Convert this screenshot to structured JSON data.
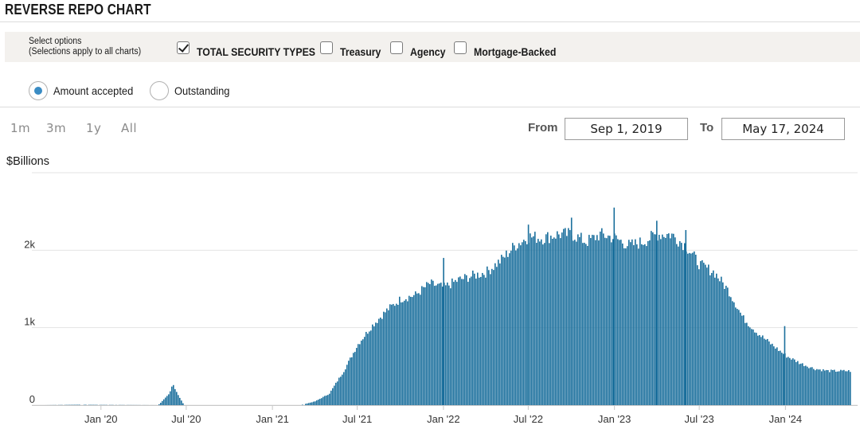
{
  "header": {
    "title": "REVERSE REPO CHART"
  },
  "options": {
    "select_label_line1": "Select options",
    "select_label_line2": "(Selections apply to all charts)",
    "checkboxes": [
      {
        "label": "TOTAL SECURITY TYPES",
        "checked": true
      },
      {
        "label": "Treasury",
        "checked": false
      },
      {
        "label": "Agency",
        "checked": false
      },
      {
        "label": "Mortgage-Backed",
        "checked": false
      }
    ]
  },
  "view": {
    "radios": [
      {
        "label": "Amount accepted",
        "selected": true
      },
      {
        "label": "Outstanding",
        "selected": false
      }
    ]
  },
  "range": {
    "buttons": [
      "1m",
      "3m",
      "1y",
      "All"
    ],
    "from_label": "From",
    "from_value": "Sep 1, 2019",
    "to_label": "To",
    "to_value": "May 17, 2024"
  },
  "chart_data": {
    "type": "bar",
    "ylabel": "$Billions",
    "ylim": [
      0,
      3000
    ],
    "yticks": [
      {
        "value": 0,
        "label": "0"
      },
      {
        "value": 1000,
        "label": "1k"
      },
      {
        "value": 2000,
        "label": "2k"
      }
    ],
    "xlim": [
      "2019-09-01",
      "2024-05-17"
    ],
    "xticks": [
      {
        "date": "2020-01-01",
        "label": "Jan '20"
      },
      {
        "date": "2020-07-01",
        "label": "Jul '20"
      },
      {
        "date": "2021-01-01",
        "label": "Jan '21"
      },
      {
        "date": "2021-07-01",
        "label": "Jul '21"
      },
      {
        "date": "2022-01-01",
        "label": "Jan '22"
      },
      {
        "date": "2022-07-01",
        "label": "Jul '22"
      },
      {
        "date": "2023-01-01",
        "label": "Jan '23"
      },
      {
        "date": "2023-07-01",
        "label": "Jul '23"
      },
      {
        "date": "2024-01-01",
        "label": "Jan '24"
      }
    ],
    "grid": true,
    "color": "#1a6f9c",
    "profile": [
      [
        "2019-09-01",
        0
      ],
      [
        "2019-11-15",
        5
      ],
      [
        "2020-01-01",
        3
      ],
      [
        "2020-05-01",
        0
      ],
      [
        "2020-05-25",
        150
      ],
      [
        "2020-06-01",
        280
      ],
      [
        "2020-06-12",
        140
      ],
      [
        "2020-06-25",
        0
      ],
      [
        "2021-03-01",
        0
      ],
      [
        "2021-04-01",
        50
      ],
      [
        "2021-05-01",
        150
      ],
      [
        "2021-06-01",
        450
      ],
      [
        "2021-07-01",
        800
      ],
      [
        "2021-08-01",
        1050
      ],
      [
        "2021-09-01",
        1250
      ],
      [
        "2021-10-01",
        1400
      ],
      [
        "2021-11-01",
        1450
      ],
      [
        "2021-12-01",
        1600
      ],
      [
        "2022-01-01",
        1550
      ],
      [
        "2022-02-01",
        1650
      ],
      [
        "2022-03-01",
        1700
      ],
      [
        "2022-04-01",
        1750
      ],
      [
        "2022-05-01",
        1900
      ],
      [
        "2022-06-01",
        2100
      ],
      [
        "2022-07-01",
        2220
      ],
      [
        "2022-08-01",
        2200
      ],
      [
        "2022-09-01",
        2250
      ],
      [
        "2022-10-01",
        2250
      ],
      [
        "2022-11-01",
        2150
      ],
      [
        "2022-12-01",
        2250
      ],
      [
        "2023-01-01",
        2200
      ],
      [
        "2023-02-01",
        2100
      ],
      [
        "2023-03-01",
        2150
      ],
      [
        "2023-04-01",
        2250
      ],
      [
        "2023-05-01",
        2250
      ],
      [
        "2023-06-01",
        2100
      ],
      [
        "2023-07-01",
        1850
      ],
      [
        "2023-08-01",
        1750
      ],
      [
        "2023-09-01",
        1500
      ],
      [
        "2023-10-01",
        1150
      ],
      [
        "2023-11-01",
        950
      ],
      [
        "2023-12-01",
        800
      ],
      [
        "2024-01-01",
        650
      ],
      [
        "2024-02-01",
        550
      ],
      [
        "2024-03-01",
        480
      ],
      [
        "2024-04-01",
        450
      ],
      [
        "2024-05-17",
        450
      ]
    ],
    "spikes": [
      [
        "2021-12-31",
        1900
      ],
      [
        "2022-06-30",
        2330
      ],
      [
        "2022-09-30",
        2420
      ],
      [
        "2022-12-30",
        2550
      ],
      [
        "2023-03-31",
        2380
      ],
      [
        "2023-06-01",
        2260
      ],
      [
        "2023-12-29",
        1020
      ]
    ]
  }
}
